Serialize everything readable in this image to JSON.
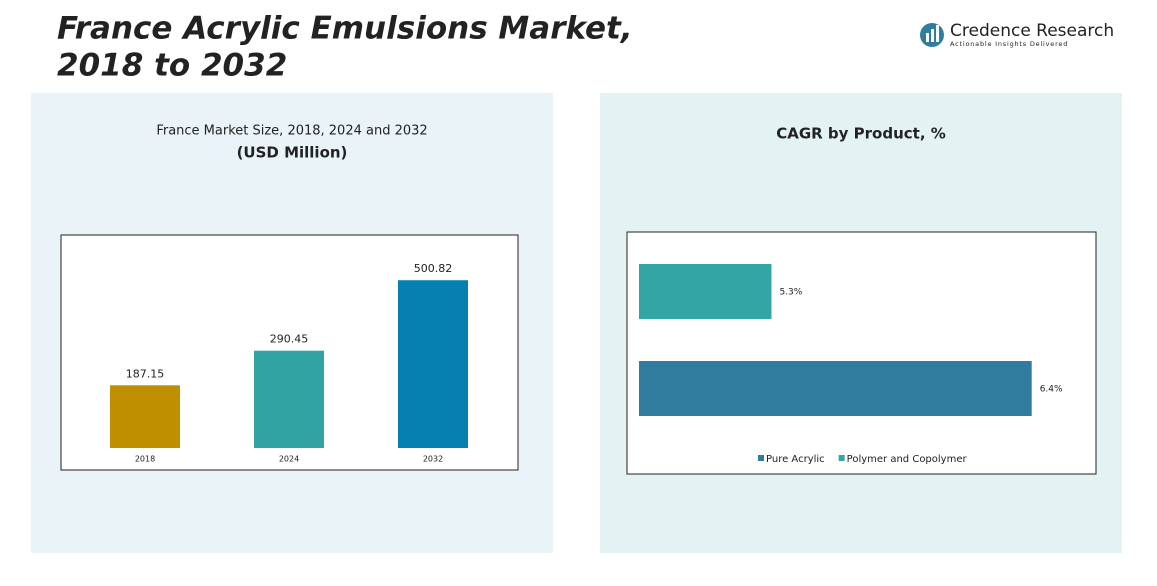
{
  "header": {
    "title": [
      "France Acrylic Emulsions Market,",
      "2018 to 2032"
    ],
    "logo": "Credence Research",
    "tagline": "Actionable Insights Delivered"
  },
  "chart_data": [
    {
      "type": "bar",
      "title": "France Market Size, 2018, 2024 and 2032",
      "subtitle": "(USD Million)",
      "categories": [
        "2018",
        "2024",
        "2032"
      ],
      "values": [
        187.15,
        290.45,
        500.82
      ],
      "colors": [
        "#c08f00",
        "#31a3a3",
        "#0580b0"
      ],
      "ylim": [
        0,
        600
      ]
    },
    {
      "type": "hbar",
      "title": "CAGR by Product, %",
      "series": [
        {
          "name": "Polymer and Copolymer",
          "color": "#33a5a5",
          "values": [
            5.3
          ],
          "value_labels": [
            "5.3%"
          ]
        },
        {
          "name": "Pure Acrylic",
          "color": "#307c9e",
          "values": [
            6.4
          ],
          "value_labels": [
            "6.4%"
          ]
        }
      ],
      "xlim": [
        4.74,
        6.6
      ]
    }
  ]
}
